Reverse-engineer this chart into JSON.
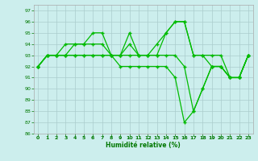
{
  "xlabel": "Humidité relative (%)",
  "background_color": "#cceeed",
  "grid_color": "#aacccc",
  "line_color": "#00bb00",
  "xlim": [
    -0.5,
    23.5
  ],
  "ylim": [
    86,
    97.5
  ],
  "xticks": [
    0,
    1,
    2,
    3,
    4,
    5,
    6,
    7,
    8,
    9,
    10,
    11,
    12,
    13,
    14,
    15,
    16,
    17,
    18,
    19,
    20,
    21,
    22,
    23
  ],
  "yticks": [
    86,
    87,
    88,
    89,
    90,
    91,
    92,
    93,
    94,
    95,
    96,
    97
  ],
  "series": [
    [
      92,
      93,
      93,
      93,
      94,
      94,
      95,
      95,
      93,
      93,
      95,
      93,
      93,
      94,
      95,
      96,
      96,
      93,
      93,
      92,
      92,
      91,
      91,
      93
    ],
    [
      92,
      93,
      93,
      94,
      94,
      94,
      94,
      94,
      93,
      93,
      94,
      93,
      93,
      93,
      95,
      96,
      96,
      93,
      93,
      93,
      93,
      91,
      91,
      93
    ],
    [
      92,
      93,
      93,
      93,
      93,
      93,
      93,
      93,
      93,
      93,
      93,
      93,
      93,
      93,
      93,
      93,
      92,
      88,
      90,
      92,
      92,
      91,
      91,
      93
    ],
    [
      92,
      93,
      93,
      93,
      93,
      93,
      93,
      93,
      93,
      92,
      92,
      92,
      92,
      92,
      92,
      91,
      87,
      88,
      90,
      92,
      92,
      91,
      91,
      93
    ]
  ]
}
